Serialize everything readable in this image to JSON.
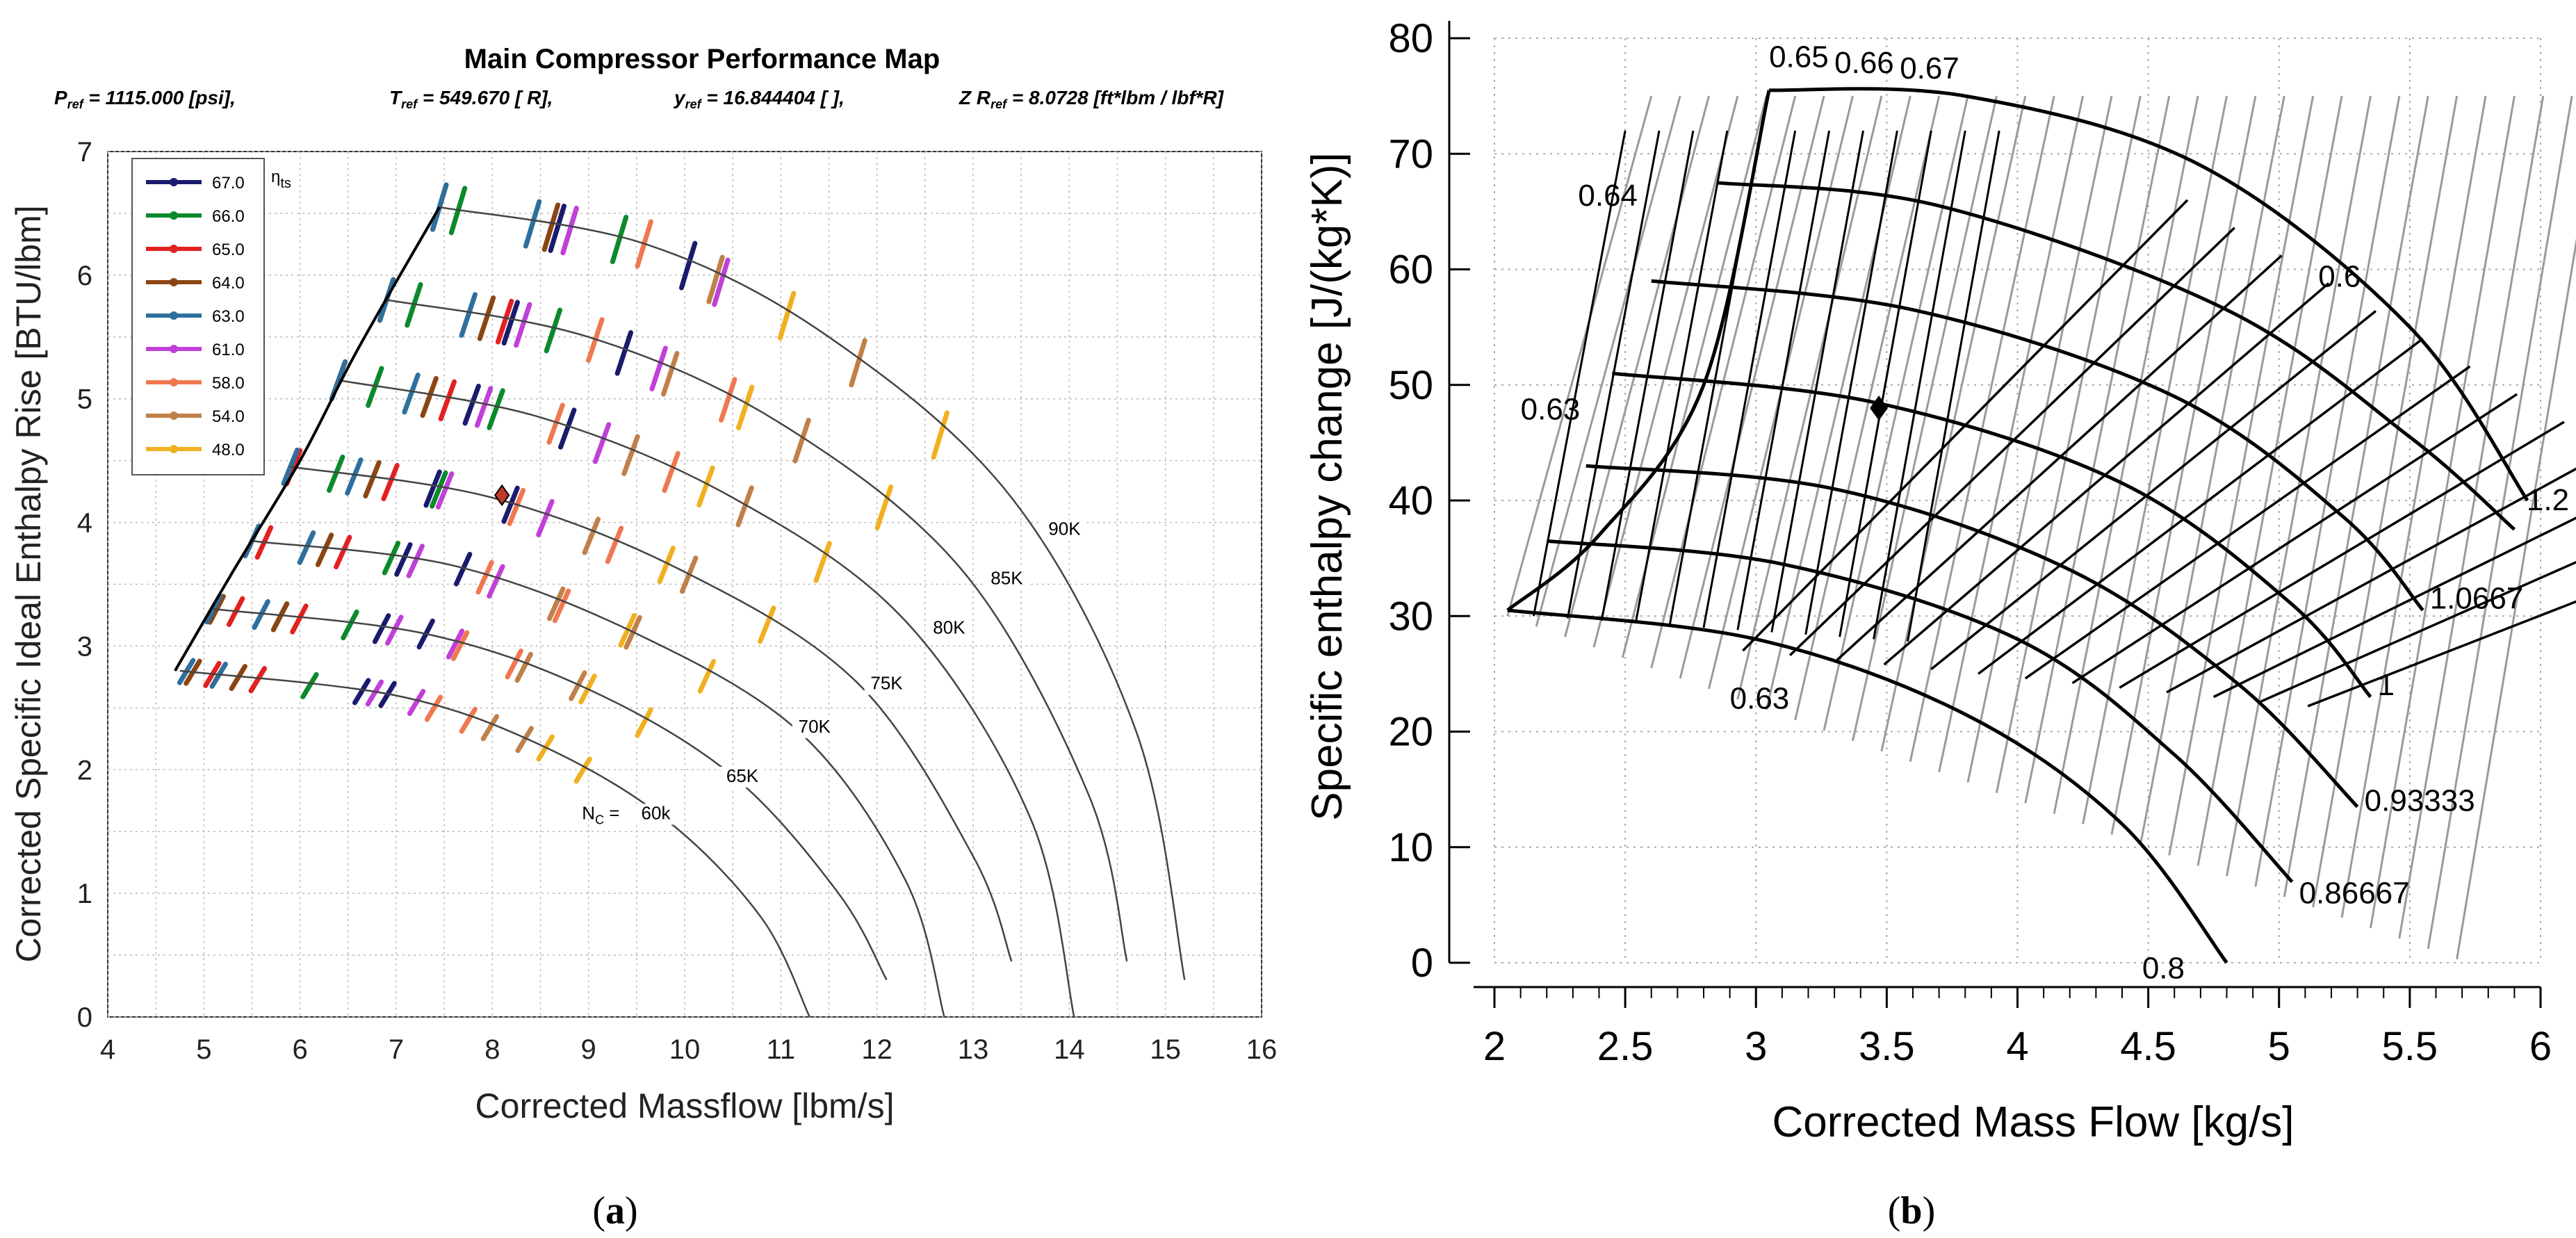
{
  "chart_data": [
    {
      "panel": "(a)",
      "type": "line",
      "title": "Main Compressor Performance Map",
      "subtitle": "Pref = 1115.000 [psi],     Tref = 549.670 [ R],     yref = 16.844404 [ ],     Z Rref = 8.0728 [ft*lbm / lbf*R]",
      "ref_labels": {
        "p": {
          "sym": "P",
          "sub": "ref",
          "rest": " = 1115.000 [psi],"
        },
        "t": {
          "sym": "T",
          "sub": "ref",
          "rest": " = 549.670 [ R],"
        },
        "y": {
          "sym": "y",
          "sub": "ref",
          "rest": " = 16.844404 [ ],"
        },
        "z": {
          "sym": "Z R",
          "sub": "ref",
          "rest": " = 8.0728 [ft*lbm / lbf*R]"
        }
      },
      "xlabel": "Corrected Massflow [lbm/s]",
      "ylabel": "Corrected Specific Ideal Enthalpy Rise [BTU/lbm]",
      "xlim": [
        4,
        16
      ],
      "ylim": [
        0,
        7
      ],
      "xticks": [
        "4",
        "5",
        "6",
        "7",
        "8",
        "9",
        "10",
        "11",
        "12",
        "13",
        "14",
        "15",
        "16"
      ],
      "yticks": [
        "0",
        "1",
        "2",
        "3",
        "4",
        "5",
        "6",
        "7"
      ],
      "legend_title": "ηts",
      "legend_title_main": "η",
      "legend_title_sub": "ts",
      "legend": [
        {
          "label": "67.0",
          "color": "#1a1a6e"
        },
        {
          "label": "66.0",
          "color": "#0a8a2a"
        },
        {
          "label": "65.0",
          "color": "#e32020"
        },
        {
          "label": "64.0",
          "color": "#8b4513"
        },
        {
          "label": "63.0",
          "color": "#2e6f9e"
        },
        {
          "label": "61.0",
          "color": "#c040d8"
        },
        {
          "label": "58.0",
          "color": "#f07850"
        },
        {
          "label": "54.0",
          "color": "#c0804a"
        },
        {
          "label": "48.0",
          "color": "#f0b020"
        }
      ],
      "speed_label_prefix": "NC =",
      "speed_label_prefix_main": "N",
      "speed_label_prefix_sub": "C",
      "speed_label_prefix_eq": " =",
      "speed_lines": [
        {
          "label": "60k",
          "pts": [
            [
              4.75,
              2.8
            ],
            [
              7.0,
              2.6
            ],
            [
              8.5,
              2.2
            ],
            [
              9.8,
              1.6
            ],
            [
              10.8,
              0.8
            ],
            [
              11.3,
              0.0
            ]
          ]
        },
        {
          "label": "65K",
          "pts": [
            [
              5.1,
              3.3
            ],
            [
              7.3,
              3.1
            ],
            [
              9.0,
              2.65
            ],
            [
              10.5,
              1.95
            ],
            [
              11.6,
              1.0
            ],
            [
              12.1,
              0.3
            ]
          ]
        },
        {
          "label": "70K",
          "pts": [
            [
              5.5,
              3.85
            ],
            [
              7.6,
              3.65
            ],
            [
              9.5,
              3.1
            ],
            [
              11.2,
              2.3
            ],
            [
              12.3,
              1.1
            ],
            [
              12.7,
              0.0
            ]
          ]
        },
        {
          "label": "75K",
          "pts": [
            [
              5.9,
              4.45
            ],
            [
              8.0,
              4.2
            ],
            [
              10.0,
              3.6
            ],
            [
              11.8,
              2.7
            ],
            [
              13.0,
              1.3
            ],
            [
              13.4,
              0.45
            ]
          ]
        },
        {
          "label": "80K",
          "pts": [
            [
              6.4,
              5.15
            ],
            [
              8.5,
              4.85
            ],
            [
              10.5,
              4.2
            ],
            [
              12.3,
              3.2
            ],
            [
              13.6,
              1.6
            ],
            [
              14.05,
              0.0
            ]
          ]
        },
        {
          "label": "85K",
          "pts": [
            [
              6.9,
              5.8
            ],
            [
              9.0,
              5.5
            ],
            [
              11.0,
              4.8
            ],
            [
              12.9,
              3.6
            ],
            [
              14.2,
              1.8
            ],
            [
              14.6,
              0.45
            ]
          ]
        },
        {
          "label": "90K",
          "pts": [
            [
              7.45,
              6.55
            ],
            [
              9.6,
              6.25
            ],
            [
              11.5,
              5.5
            ],
            [
              13.4,
              4.2
            ],
            [
              14.7,
              2.3
            ],
            [
              15.2,
              0.3
            ]
          ]
        }
      ],
      "surge_line": [
        [
          4.7,
          2.8
        ],
        [
          5.3,
          3.6
        ],
        [
          6.0,
          4.5
        ],
        [
          6.6,
          5.4
        ],
        [
          7.45,
          6.55
        ]
      ],
      "speed_label_positions": [
        {
          "label": "60k",
          "x": 9.7,
          "y": 1.6
        },
        {
          "label": "65K",
          "x": 10.6,
          "y": 1.9
        },
        {
          "label": "70K",
          "x": 11.35,
          "y": 2.3
        },
        {
          "label": "75K",
          "x": 12.1,
          "y": 2.65
        },
        {
          "label": "80K",
          "x": 12.75,
          "y": 3.1
        },
        {
          "label": "85K",
          "x": 13.35,
          "y": 3.5
        },
        {
          "label": "90K",
          "x": 13.95,
          "y": 3.9
        }
      ],
      "design_point": {
        "x": 8.1,
        "y": 4.22
      }
    },
    {
      "panel": "(b)",
      "type": "line",
      "xlabel": "Corrected Mass Flow [kg/s]",
      "ylabel": "Specific enthalpy change [J/(kg*K)]",
      "xlim": [
        2,
        6
      ],
      "ylim": [
        0,
        80
      ],
      "xticks": [
        "2",
        "2.5",
        "3",
        "3.5",
        "4",
        "4.5",
        "5",
        "5.5",
        "6"
      ],
      "yticks": [
        "0",
        "10",
        "20",
        "30",
        "40",
        "50",
        "60",
        "70",
        "80"
      ],
      "speed_lines": [
        {
          "label": "0.8",
          "pts": [
            [
              2.05,
              30.5
            ],
            [
              3.0,
              28.0
            ],
            [
              3.8,
              21.5
            ],
            [
              4.4,
              12.0
            ],
            [
              4.8,
              0.0
            ]
          ]
        },
        {
          "label": "0.86667",
          "pts": [
            [
              2.2,
              36.5
            ],
            [
              3.1,
              34.5
            ],
            [
              4.0,
              28.0
            ],
            [
              4.6,
              18.0
            ],
            [
              5.05,
              7.0
            ]
          ]
        },
        {
          "label": "0.93333",
          "pts": [
            [
              2.35,
              43.0
            ],
            [
              3.3,
              41.0
            ],
            [
              4.2,
              34.0
            ],
            [
              4.85,
              24.0
            ],
            [
              5.3,
              13.5
            ]
          ]
        },
        {
          "label": "1",
          "pts": [
            [
              2.45,
              51.0
            ],
            [
              3.45,
              48.5
            ],
            [
              4.4,
              41.5
            ],
            [
              5.05,
              31.0
            ],
            [
              5.35,
              23.0
            ]
          ]
        },
        {
          "label": "1.0667",
          "pts": [
            [
              2.6,
              59.0
            ],
            [
              3.6,
              56.5
            ],
            [
              4.6,
              49.0
            ],
            [
              5.25,
              38.5
            ],
            [
              5.55,
              30.5
            ]
          ]
        },
        {
          "label": "1.2",
          "pts": [
            [
              2.85,
              67.5
            ],
            [
              3.7,
              65.5
            ],
            [
              4.8,
              56.5
            ],
            [
              5.5,
              45.5
            ],
            [
              5.9,
              37.5
            ]
          ]
        }
      ],
      "top_line": [
        [
          3.05,
          75.5
        ],
        [
          3.8,
          75.0
        ],
        [
          4.7,
          69.0
        ],
        [
          5.5,
          55.0
        ],
        [
          5.95,
          40.0
        ]
      ],
      "surge_line": [
        [
          2.05,
          30.5
        ],
        [
          2.4,
          37.0
        ],
        [
          2.8,
          50.0
        ],
        [
          3.05,
          75.5
        ]
      ],
      "speed_label_positions": [
        {
          "label": "0.8",
          "x": 4.45,
          "y": -0.5
        },
        {
          "label": "0.86667",
          "x": 5.05,
          "y": 6.0
        },
        {
          "label": "0.93333",
          "x": 5.3,
          "y": 14.0
        },
        {
          "label": "1",
          "x": 5.35,
          "y": 24.0
        },
        {
          "label": "1.0667",
          "x": 5.55,
          "y": 31.5
        },
        {
          "label": "1.2",
          "x": 5.92,
          "y": 40.0
        }
      ],
      "efficiency_labels": [
        {
          "label": "0.65",
          "x": 3.05,
          "y": 77.5
        },
        {
          "label": "0.66",
          "x": 3.3,
          "y": 77.0
        },
        {
          "label": "0.67",
          "x": 3.55,
          "y": 76.5
        },
        {
          "label": "0.64",
          "x": 2.32,
          "y": 65.5
        },
        {
          "label": "0.6",
          "x": 5.15,
          "y": 58.5
        },
        {
          "label": "0.63",
          "x": 2.1,
          "y": 47.0
        },
        {
          "label": "0.63",
          "x": 2.9,
          "y": 22.0
        }
      ],
      "design_point": {
        "x": 3.47,
        "y": 48.0
      }
    }
  ],
  "panel_labels": {
    "a": "(a)",
    "b": "(b)"
  }
}
